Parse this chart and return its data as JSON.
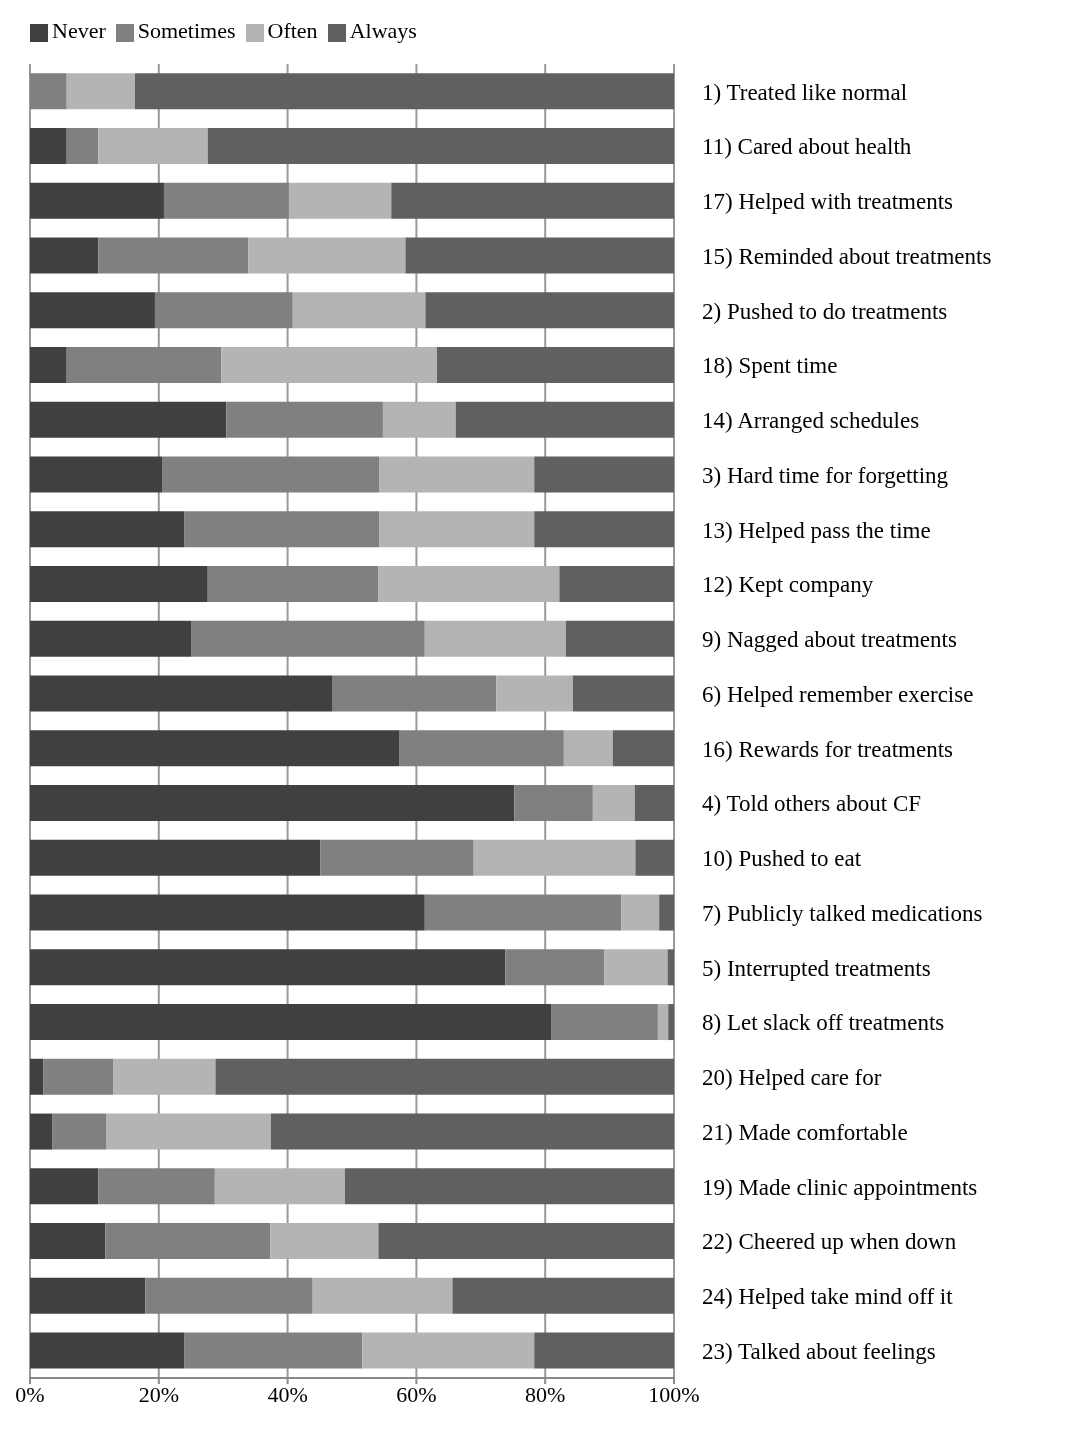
{
  "chart_data": {
    "type": "bar",
    "orientation": "horizontal",
    "stacked": true,
    "categories": [
      "1)  Treated like normal",
      "11)  Cared about health",
      "17)  Helped with treatments",
      "15)  Reminded about treatments",
      "2)  Pushed to do treatments",
      "18)  Spent time",
      "14)  Arranged schedules",
      "3)  Hard time for forgetting",
      "13)  Helped pass the time",
      "12)  Kept company",
      "9)  Nagged about treatments",
      "6)  Helped remember exercise",
      "16)  Rewards for treatments",
      "4)  Told others about CF",
      "10)  Pushed to eat",
      "7)  Publicly talked medications",
      "5)  Interrupted treatments",
      "8)  Let slack off treatments",
      "20)  Helped care for",
      "21)  Made comfortable",
      "19)  Made clinic appointments",
      "22)  Cheered up when down",
      "24)  Helped take mind off it",
      "23)  Talked about feelings"
    ],
    "series": [
      {
        "name": "Never",
        "color": "#404040",
        "values": [
          0,
          5.7,
          20.8,
          10.6,
          19.4,
          5.7,
          30.5,
          20.5,
          24,
          27.6,
          25.1,
          47,
          57.3,
          75.2,
          45.1,
          61.3,
          73.8,
          81,
          2.1,
          3.5,
          10.6,
          11.7,
          17.9,
          24
        ]
      },
      {
        "name": "Sometimes",
        "color": "#808080",
        "values": [
          5.7,
          4.9,
          19.4,
          23.3,
          21.4,
          24,
          24.3,
          33.7,
          30.2,
          26.5,
          36.2,
          25.4,
          25.6,
          12.2,
          23.8,
          30.5,
          15.4,
          16.5,
          10.8,
          8.3,
          18.1,
          25.6,
          26,
          27.6
        ]
      },
      {
        "name": "Often",
        "color": "#b4b4b4",
        "values": [
          10.6,
          17,
          15.9,
          24.4,
          20.6,
          33.5,
          11.3,
          24.1,
          24.1,
          28.1,
          21.9,
          11.9,
          7.6,
          6.5,
          25.1,
          5.9,
          9.8,
          1.6,
          15.9,
          25.6,
          20.2,
          16.8,
          21.7,
          26.7
        ]
      },
      {
        "name": "Always",
        "color": "#606060",
        "values": [
          83.7,
          72.4,
          43.9,
          41.7,
          38.6,
          36.8,
          33.9,
          21.7,
          21.7,
          17.8,
          16.8,
          15.7,
          9.5,
          6.1,
          6,
          2.3,
          1,
          0.9,
          71.2,
          62.6,
          51.1,
          45.9,
          34.4,
          21.7
        ]
      }
    ],
    "xlim": [
      0,
      100
    ],
    "xticks": [
      {
        "value": 0,
        "label": "0%"
      },
      {
        "value": 20,
        "label": "20%"
      },
      {
        "value": 40,
        "label": "40%"
      },
      {
        "value": 60,
        "label": "60%"
      },
      {
        "value": 80,
        "label": "80%"
      },
      {
        "value": 100,
        "label": "100%"
      }
    ],
    "grid": "x",
    "legend": "top left"
  }
}
